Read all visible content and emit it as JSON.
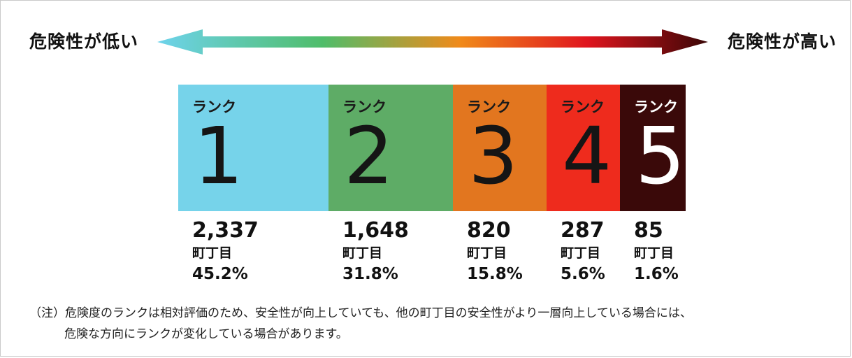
{
  "scale": {
    "low_label": "危険性が低い",
    "high_label": "危険性が高い",
    "gradient_colors": [
      "#6ed3ec",
      "#4fbd6a",
      "#f08a1a",
      "#e0151e",
      "#3a0606"
    ]
  },
  "chart_data": {
    "type": "table",
    "rank_label": "ランク",
    "unit": "町丁目",
    "ranks": [
      {
        "rank": "1",
        "count": "2,337",
        "percent": "45.2%",
        "value": 45.2,
        "color": "#76d3ea",
        "label_color": "#1a1a1a",
        "num_color": "#151515"
      },
      {
        "rank": "2",
        "count": "1,648",
        "percent": "31.8%",
        "value": 31.8,
        "color": "#5eac66",
        "label_color": "#1a1a1a",
        "num_color": "#151515"
      },
      {
        "rank": "3",
        "count": "820",
        "percent": "15.8%",
        "value": 15.8,
        "color": "#e2761f",
        "label_color": "#1a1a1a",
        "num_color": "#151515"
      },
      {
        "rank": "4",
        "count": "287",
        "percent": "5.6%",
        "value": 5.6,
        "color": "#ee2b1d",
        "label_color": "#1a1a1a",
        "num_color": "#151515"
      },
      {
        "rank": "5",
        "count": "85",
        "percent": "1.6%",
        "value": 1.6,
        "color": "#3a0909",
        "label_color": "#ffffff",
        "num_color": "#ffffff"
      }
    ]
  },
  "note": {
    "line1": "（注）危険度のランクは相対評価のため、安全性が向上していても、他の町丁目の安全性がより一層向上している場合には、",
    "line2": "危険な方向にランクが変化している場合があります。"
  }
}
